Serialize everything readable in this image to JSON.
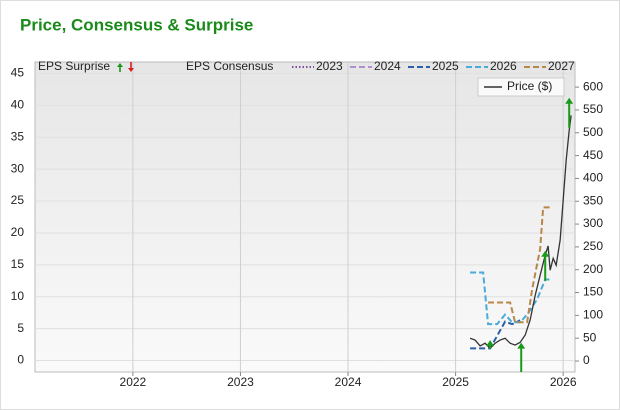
{
  "chart_data": {
    "type": "line",
    "title": "Price, Consensus & Surprise",
    "surprise_label": "EPS Surprise",
    "consensus_label": "EPS Consensus",
    "xlim": [
      2021.09,
      2026.11
    ],
    "xticks": [
      2022,
      2023,
      2024,
      2025,
      2026
    ],
    "ylim": [
      -1.8,
      46.8
    ],
    "yticks": [
      0,
      5,
      10,
      15,
      20,
      25,
      30,
      35,
      40,
      45
    ],
    "y2lim": [
      -24,
      655
    ],
    "y2ticks": [
      0,
      50,
      100,
      150,
      200,
      250,
      300,
      350,
      400,
      450,
      500,
      550,
      600
    ],
    "grid": true,
    "surprise": {
      "color": "#1a9a1a",
      "x": [
        2025.321,
        2025.61,
        2025.833,
        2026.056
      ],
      "start": [
        1.8,
        -1.8,
        12.5,
        36.5
      ],
      "values": [
        3.2,
        2.8,
        17.2,
        41.2
      ]
    },
    "series": [
      {
        "name": "2023",
        "color": "#7b4fa0",
        "dash": "dotted",
        "x": [],
        "values": []
      },
      {
        "name": "2024",
        "color": "#b38fd0",
        "dash": "dashed",
        "x": [],
        "values": []
      },
      {
        "name": "2025",
        "color": "#2c5fa8",
        "dash": "dashed",
        "x": [
          2025.135,
          2025.321,
          2025.46,
          2025.526,
          2025.6
        ],
        "values": [
          1.9,
          1.9,
          6.1,
          5.7,
          6.3
        ]
      },
      {
        "name": "2026",
        "color": "#4aaad8",
        "dash": "dashed",
        "x": [
          2025.135,
          2025.256,
          2025.302,
          2025.386,
          2025.46,
          2025.526,
          2025.6,
          2025.665,
          2025.758,
          2025.833,
          2025.879
        ],
        "values": [
          13.8,
          13.8,
          5.7,
          5.7,
          7.2,
          6.0,
          6.0,
          7.2,
          9.6,
          12.7,
          12.7
        ]
      },
      {
        "name": "2027",
        "color": "#b8874a",
        "dash": "dashed",
        "x": [
          2025.302,
          2025.507,
          2025.553,
          2025.665,
          2025.712,
          2025.786,
          2025.814,
          2025.898
        ],
        "values": [
          9.1,
          9.1,
          6.0,
          6.0,
          11.2,
          17.5,
          24.0,
          24.0
        ]
      },
      {
        "name": "Price ($)",
        "color": "#333333",
        "dash": "solid",
        "axis": "y2",
        "x": [
          2025.135,
          2025.181,
          2025.228,
          2025.274,
          2025.321,
          2025.367,
          2025.414,
          2025.46,
          2025.507,
          2025.553,
          2025.6,
          2025.647,
          2025.693,
          2025.74,
          2025.786,
          2025.833,
          2025.86,
          2025.879,
          2025.907,
          2025.935,
          2025.972,
          2026.0,
          2026.028,
          2026.056,
          2026.074
        ],
        "values": [
          50,
          46,
          33,
          39,
          28,
          39,
          46,
          50,
          39,
          35,
          41,
          57,
          90,
          144,
          188,
          232,
          252,
          199,
          225,
          210,
          265,
          352,
          440,
          505,
          538
        ]
      }
    ]
  }
}
